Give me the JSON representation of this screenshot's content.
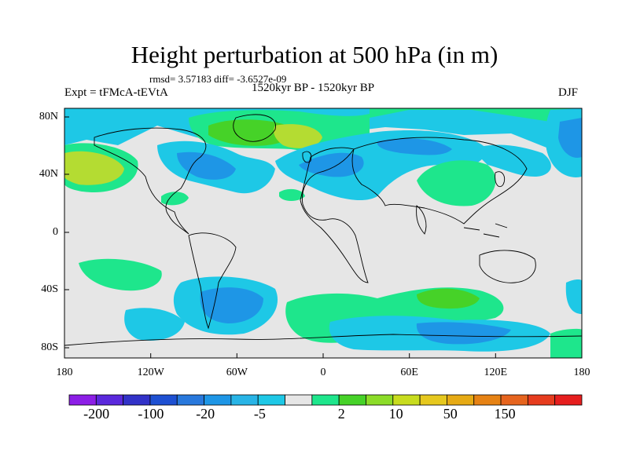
{
  "title": "Height perturbation at 500 hPa (in m)",
  "stats": "rmsd= 3.57183 diff= -3.6527e-09",
  "experiment": "Expt = tFMcA-tEVtA",
  "period": "1520kyr BP - 1520kyr BP",
  "season": "DJF",
  "lat_labels": [
    "80N",
    "40N",
    "0",
    "40S",
    "80S"
  ],
  "lon_labels": [
    "180",
    "120W",
    "60W",
    "0",
    "60E",
    "120E",
    "180"
  ],
  "colorbar": {
    "labels": [
      "-200",
      "-100",
      "-20",
      "-5",
      "2",
      "10",
      "50",
      "150"
    ],
    "colors": [
      "#8c1ee6",
      "#5a28dc",
      "#3232c8",
      "#1e50d2",
      "#2878dc",
      "#1e96e6",
      "#28b4e6",
      "#1ec8e6",
      "#e6e6e6",
      "#1ee68c",
      "#46d228",
      "#8cdc28",
      "#c8dc1e",
      "#e6c81e",
      "#e6aa14",
      "#e68214",
      "#e6641e",
      "#e63c1e",
      "#e61e1e"
    ]
  },
  "field_colors": {
    "background": "#e6e6e6",
    "light_blue": "#1ec8e6",
    "mid_blue": "#1e96e6",
    "light_green": "#1ee68c",
    "green": "#46d228",
    "yellow_green": "#b4dc32"
  }
}
